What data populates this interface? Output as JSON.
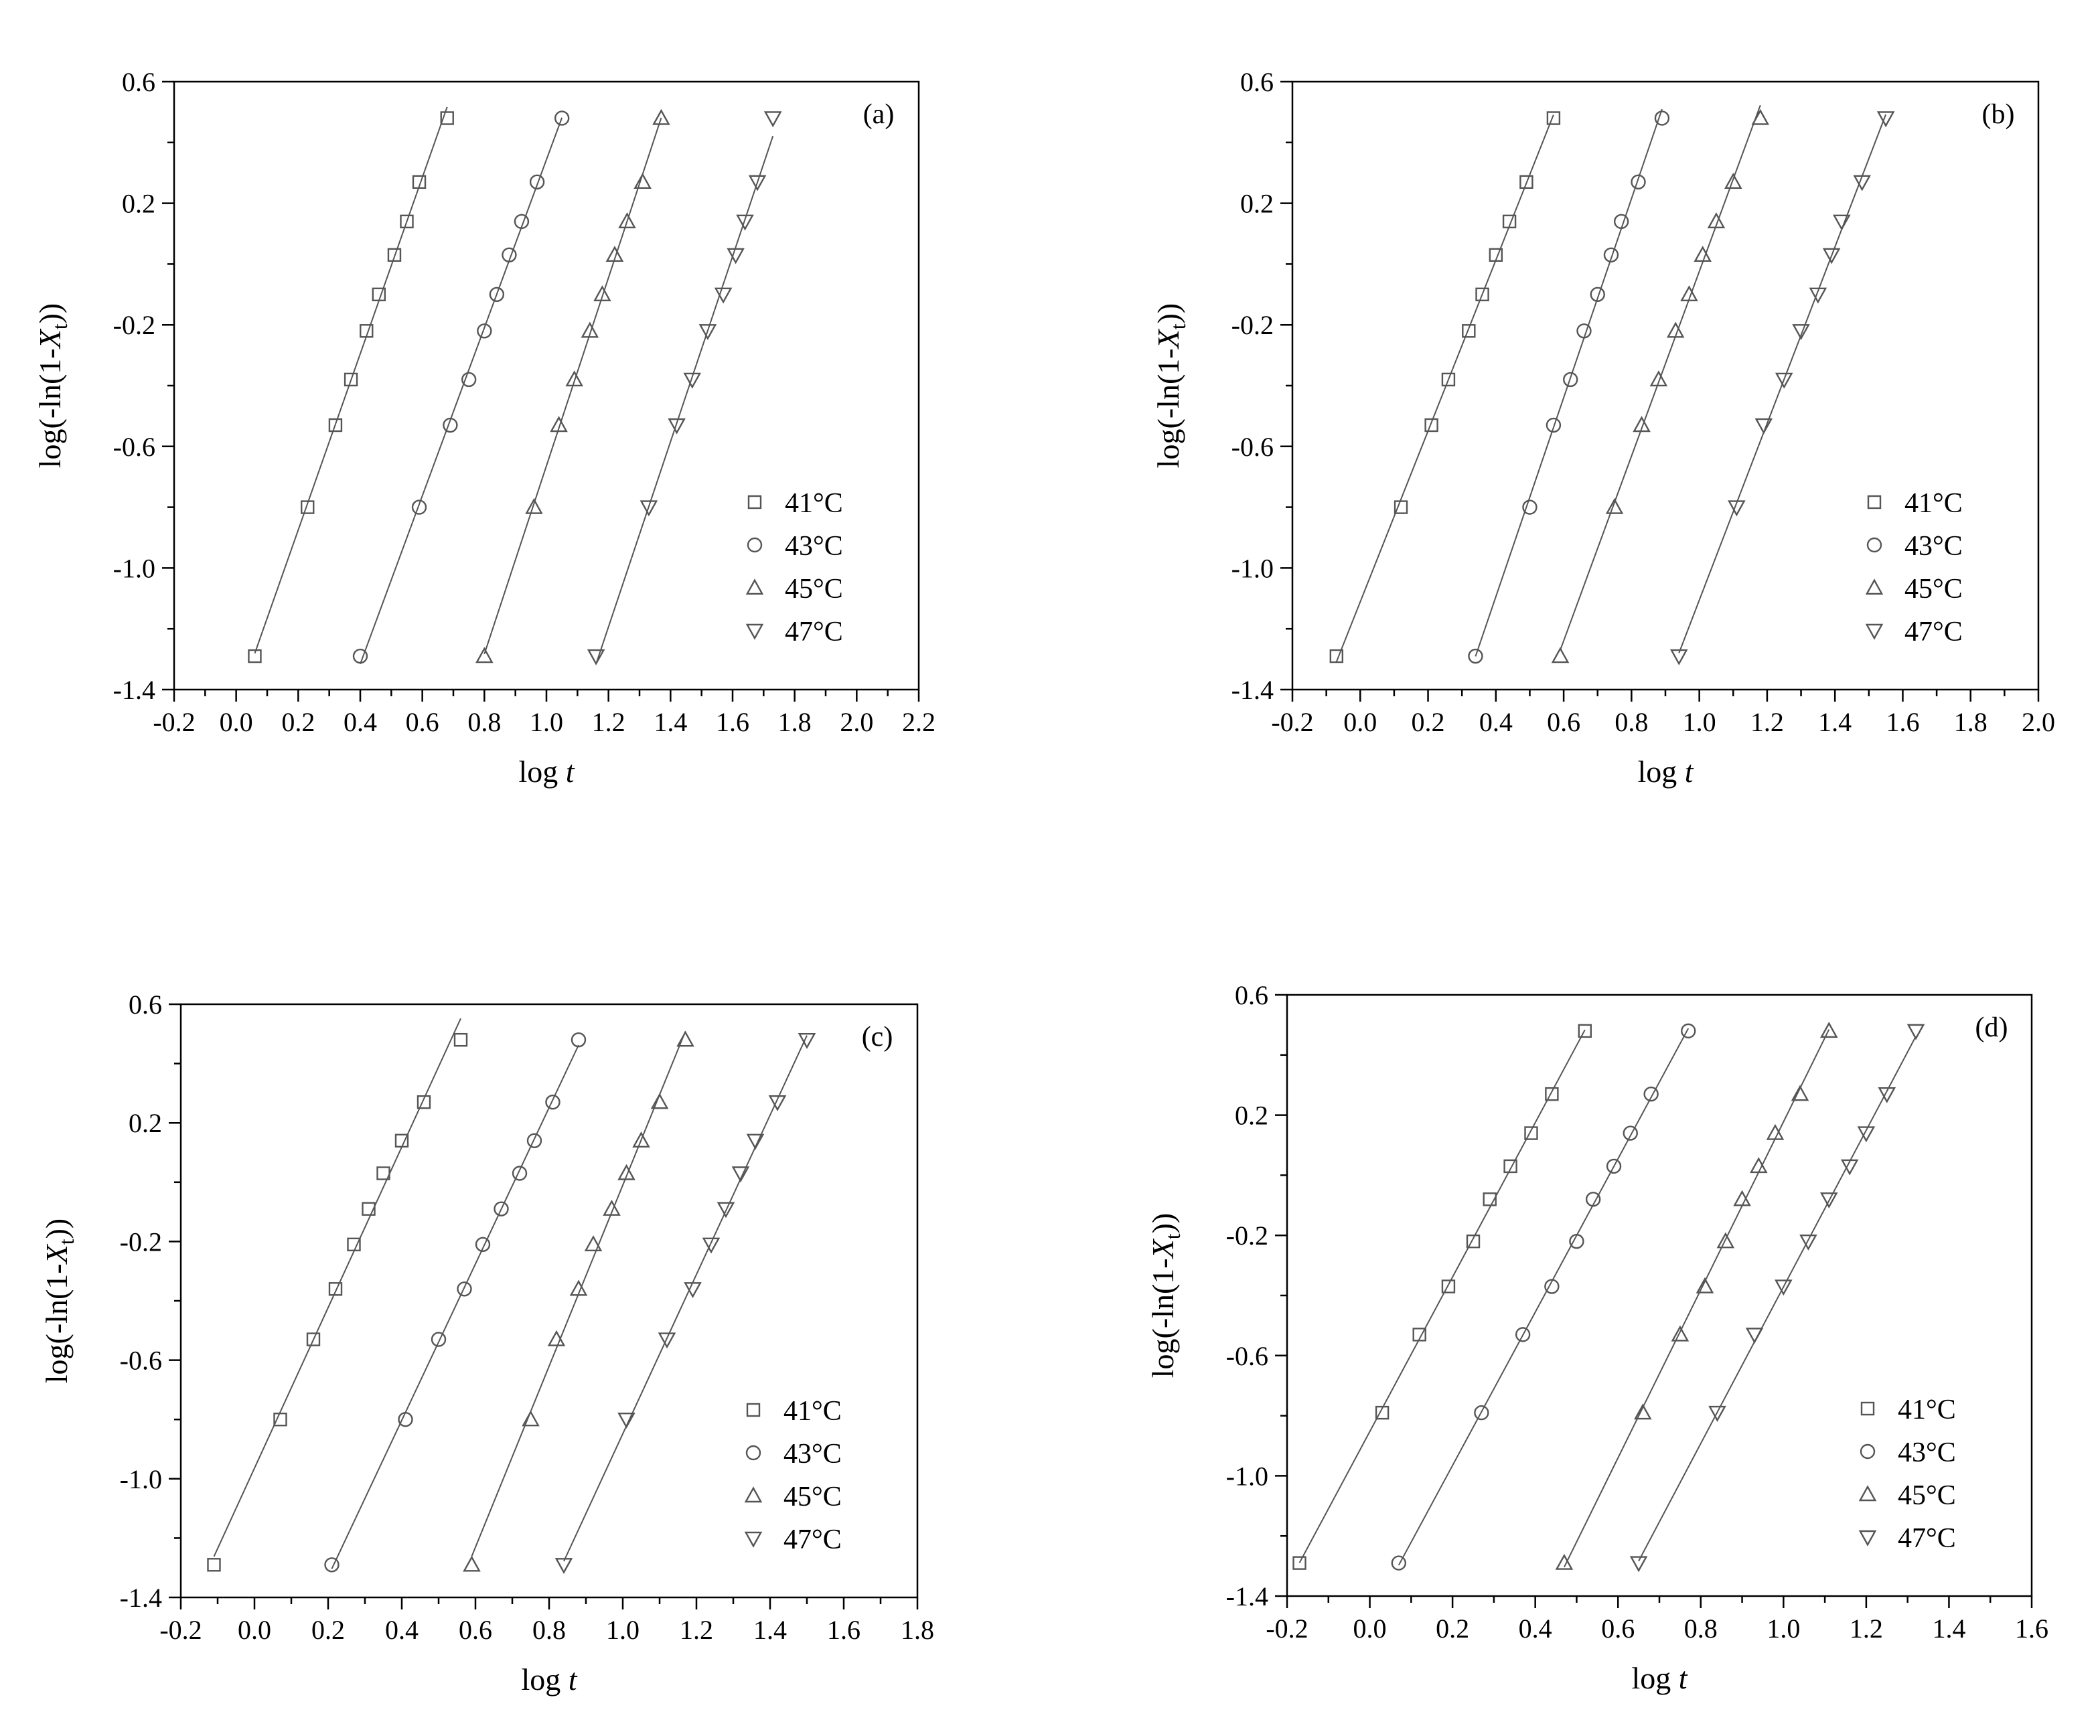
{
  "axis_labels": {
    "x_prefix": "log ",
    "x_italic": "t",
    "y_prefix": "log(-ln(1-",
    "y_italic": "X",
    "y_sub": "t",
    "y_suffix": "))"
  },
  "chart_data": [
    {
      "type": "scatter",
      "panel_label": "(a)",
      "xlim": [
        -0.2,
        2.2
      ],
      "ylim": [
        -1.4,
        0.6
      ],
      "xticks": [
        "-0.2",
        "0.0",
        "0.2",
        "0.4",
        "0.6",
        "0.8",
        "1.0",
        "1.2",
        "1.4",
        "1.6",
        "1.8",
        "2.0",
        "2.2"
      ],
      "yticks": [
        "-1.4",
        "-1.0",
        "-0.6",
        "-0.2",
        "0.2",
        "0.6"
      ],
      "legend_position": "bottom-right",
      "series": [
        {
          "name": "41°C",
          "marker": "square",
          "x": [
            0.06,
            0.23,
            0.32,
            0.37,
            0.42,
            0.46,
            0.51,
            0.55,
            0.59,
            0.68
          ],
          "y": [
            -1.29,
            -0.8,
            -0.53,
            -0.38,
            -0.22,
            -0.1,
            0.03,
            0.14,
            0.27,
            0.48
          ]
        },
        {
          "name": "43°C",
          "marker": "circle",
          "x": [
            0.4,
            0.59,
            0.69,
            0.75,
            0.8,
            0.84,
            0.88,
            0.92,
            0.97,
            1.05
          ],
          "y": [
            -1.29,
            -0.8,
            -0.53,
            -0.38,
            -0.22,
            -0.1,
            0.03,
            0.14,
            0.27,
            0.48
          ]
        },
        {
          "name": "45°C",
          "marker": "triangle-up",
          "x": [
            0.8,
            0.96,
            1.04,
            1.09,
            1.14,
            1.18,
            1.22,
            1.26,
            1.31,
            1.37
          ],
          "y": [
            -1.29,
            -0.8,
            -0.53,
            -0.38,
            -0.22,
            -0.1,
            0.03,
            0.14,
            0.27,
            0.48
          ]
        },
        {
          "name": "47°C",
          "marker": "triangle-down",
          "x": [
            1.16,
            1.33,
            1.42,
            1.47,
            1.52,
            1.57,
            1.61,
            1.64,
            1.68,
            1.73
          ],
          "y": [
            -1.29,
            -0.8,
            -0.53,
            -0.38,
            -0.22,
            -0.1,
            0.03,
            0.14,
            0.27,
            0.48
          ]
        }
      ]
    },
    {
      "type": "scatter",
      "panel_label": "(b)",
      "xlim": [
        -0.2,
        2.0
      ],
      "ylim": [
        -1.4,
        0.6
      ],
      "xticks": [
        "-0.2",
        "0.0",
        "0.2",
        "0.4",
        "0.6",
        "0.8",
        "1.0",
        "1.2",
        "1.4",
        "1.6",
        "1.8",
        "2.0"
      ],
      "yticks": [
        "-1.4",
        "-1.0",
        "-0.6",
        "-0.2",
        "0.2",
        "0.6"
      ],
      "legend_position": "bottom-right",
      "series": [
        {
          "name": "41°C",
          "marker": "square",
          "x": [
            -0.07,
            0.12,
            0.21,
            0.26,
            0.32,
            0.36,
            0.4,
            0.44,
            0.49,
            0.57
          ],
          "y": [
            -1.29,
            -0.8,
            -0.53,
            -0.38,
            -0.22,
            -0.1,
            0.03,
            0.14,
            0.27,
            0.48
          ]
        },
        {
          "name": "43°C",
          "marker": "circle",
          "x": [
            0.34,
            0.5,
            0.57,
            0.62,
            0.66,
            0.7,
            0.74,
            0.77,
            0.82,
            0.89
          ],
          "y": [
            -1.29,
            -0.8,
            -0.53,
            -0.38,
            -0.22,
            -0.1,
            0.03,
            0.14,
            0.27,
            0.48
          ]
        },
        {
          "name": "45°C",
          "marker": "triangle-up",
          "x": [
            0.59,
            0.75,
            0.83,
            0.88,
            0.93,
            0.97,
            1.01,
            1.05,
            1.1,
            1.18
          ],
          "y": [
            -1.29,
            -0.8,
            -0.53,
            -0.38,
            -0.22,
            -0.1,
            0.03,
            0.14,
            0.27,
            0.48
          ]
        },
        {
          "name": "47°C",
          "marker": "triangle-down",
          "x": [
            0.94,
            1.11,
            1.19,
            1.25,
            1.3,
            1.35,
            1.39,
            1.42,
            1.48,
            1.55
          ],
          "y": [
            -1.29,
            -0.8,
            -0.53,
            -0.38,
            -0.22,
            -0.1,
            0.03,
            0.14,
            0.27,
            0.48
          ]
        }
      ]
    },
    {
      "type": "scatter",
      "panel_label": "(c)",
      "xlim": [
        -0.2,
        1.8
      ],
      "ylim": [
        -1.4,
        0.6
      ],
      "xticks": [
        "-0.2",
        "0.0",
        "0.2",
        "0.4",
        "0.6",
        "0.8",
        "1.0",
        "1.2",
        "1.4",
        "1.6",
        "1.8"
      ],
      "yticks": [
        "-1.4",
        "-1.0",
        "-0.6",
        "-0.2",
        "0.2",
        "0.6"
      ],
      "legend_position": "bottom-right",
      "series": [
        {
          "name": "41°C",
          "marker": "square",
          "x": [
            -0.11,
            0.07,
            0.16,
            0.22,
            0.27,
            0.31,
            0.35,
            0.4,
            0.46,
            0.56
          ],
          "y": [
            -1.29,
            -0.8,
            -0.53,
            -0.36,
            -0.21,
            -0.09,
            0.03,
            0.14,
            0.27,
            0.48
          ]
        },
        {
          "name": "43°C",
          "marker": "circle",
          "x": [
            0.21,
            0.41,
            0.5,
            0.57,
            0.62,
            0.67,
            0.72,
            0.76,
            0.81,
            0.88
          ],
          "y": [
            -1.29,
            -0.8,
            -0.53,
            -0.36,
            -0.21,
            -0.09,
            0.03,
            0.14,
            0.27,
            0.48
          ]
        },
        {
          "name": "45°C",
          "marker": "triangle-up",
          "x": [
            0.59,
            0.75,
            0.82,
            0.88,
            0.92,
            0.97,
            1.01,
            1.05,
            1.1,
            1.17
          ],
          "y": [
            -1.29,
            -0.8,
            -0.53,
            -0.36,
            -0.21,
            -0.09,
            0.03,
            0.14,
            0.27,
            0.48
          ]
        },
        {
          "name": "47°C",
          "marker": "triangle-down",
          "x": [
            0.84,
            1.01,
            1.12,
            1.19,
            1.24,
            1.28,
            1.32,
            1.36,
            1.42,
            1.5
          ],
          "y": [
            -1.29,
            -0.8,
            -0.53,
            -0.36,
            -0.21,
            -0.09,
            0.03,
            0.14,
            0.27,
            0.48
          ]
        }
      ]
    },
    {
      "type": "scatter",
      "panel_label": "(d)",
      "xlim": [
        -0.2,
        1.6
      ],
      "ylim": [
        -1.4,
        0.6
      ],
      "xticks": [
        "-0.2",
        "0.0",
        "0.2",
        "0.4",
        "0.6",
        "0.8",
        "1.0",
        "1.2",
        "1.4",
        "1.6"
      ],
      "yticks": [
        "-1.4",
        "-1.0",
        "-0.6",
        "-0.2",
        "0.2",
        "0.6"
      ],
      "legend_position": "bottom-right",
      "series": [
        {
          "name": "41°C",
          "marker": "square",
          "x": [
            -0.17,
            0.03,
            0.12,
            0.19,
            0.25,
            0.29,
            0.34,
            0.39,
            0.44,
            0.52
          ],
          "y": [
            -1.29,
            -0.79,
            -0.53,
            -0.37,
            -0.22,
            -0.08,
            0.03,
            0.14,
            0.27,
            0.48
          ]
        },
        {
          "name": "43°C",
          "marker": "circle",
          "x": [
            0.07,
            0.27,
            0.37,
            0.44,
            0.5,
            0.54,
            0.59,
            0.63,
            0.68,
            0.77
          ],
          "y": [
            -1.29,
            -0.79,
            -0.53,
            -0.37,
            -0.22,
            -0.08,
            0.03,
            0.14,
            0.27,
            0.48
          ]
        },
        {
          "name": "45°C",
          "marker": "triangle-up",
          "x": [
            0.47,
            0.66,
            0.75,
            0.81,
            0.86,
            0.9,
            0.94,
            0.98,
            1.04,
            1.11
          ],
          "y": [
            -1.29,
            -0.79,
            -0.53,
            -0.37,
            -0.22,
            -0.08,
            0.03,
            0.14,
            0.27,
            0.48
          ]
        },
        {
          "name": "47°C",
          "marker": "triangle-down",
          "x": [
            0.65,
            0.84,
            0.93,
            1.0,
            1.06,
            1.11,
            1.16,
            1.2,
            1.25,
            1.32
          ],
          "y": [
            -1.29,
            -0.79,
            -0.53,
            -0.37,
            -0.22,
            -0.08,
            0.03,
            0.14,
            0.27,
            0.48
          ]
        }
      ]
    }
  ]
}
